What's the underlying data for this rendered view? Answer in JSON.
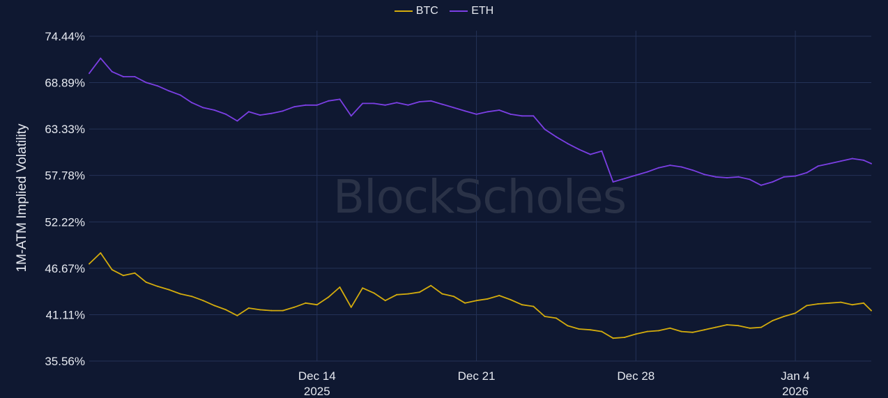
{
  "chart_data": {
    "type": "line",
    "title": "",
    "xlabel": "",
    "ylabel": "1M-ATM Implied Volatility",
    "watermark": "BlockScholes",
    "legend_position": "top-center",
    "grid": true,
    "ylim": [
      35.56,
      74.44
    ],
    "yticks": [
      "35.56%",
      "41.11%",
      "46.67%",
      "52.22%",
      "57.78%",
      "63.33%",
      "68.89%",
      "74.44%"
    ],
    "ytick_values": [
      35.56,
      41.11,
      46.67,
      52.22,
      57.78,
      63.33,
      68.89,
      74.44
    ],
    "xlim": [
      "2025-12-04",
      "2026-01-07T08:00"
    ],
    "xticks": [
      {
        "date": "2025-12-14",
        "label": "Dec 14",
        "sublabel": "2025"
      },
      {
        "date": "2025-12-21",
        "label": "Dec 21",
        "sublabel": ""
      },
      {
        "date": "2025-12-28",
        "label": "Dec 28",
        "sublabel": ""
      },
      {
        "date": "2026-01-04",
        "label": "Jan 4",
        "sublabel": "2026"
      }
    ],
    "series": [
      {
        "name": "BTC",
        "color": "#d4ac0d",
        "x": [
          "2025-12-04",
          "2025-12-04T12:00",
          "2025-12-05",
          "2025-12-05T12:00",
          "2025-12-06",
          "2025-12-06T12:00",
          "2025-12-07",
          "2025-12-07T12:00",
          "2025-12-08",
          "2025-12-08T12:00",
          "2025-12-09",
          "2025-12-09T12:00",
          "2025-12-10",
          "2025-12-10T12:00",
          "2025-12-11",
          "2025-12-11T12:00",
          "2025-12-12",
          "2025-12-12T12:00",
          "2025-12-13",
          "2025-12-13T12:00",
          "2025-12-14",
          "2025-12-14T12:00",
          "2025-12-15",
          "2025-12-15T12:00",
          "2025-12-16",
          "2025-12-16T12:00",
          "2025-12-17",
          "2025-12-17T12:00",
          "2025-12-18",
          "2025-12-18T12:00",
          "2025-12-19",
          "2025-12-19T12:00",
          "2025-12-20",
          "2025-12-20T12:00",
          "2025-12-21",
          "2025-12-21T12:00",
          "2025-12-22",
          "2025-12-22T12:00",
          "2025-12-23",
          "2025-12-23T12:00",
          "2025-12-24",
          "2025-12-24T12:00",
          "2025-12-25",
          "2025-12-25T12:00",
          "2025-12-26",
          "2025-12-26T12:00",
          "2025-12-27",
          "2025-12-27T12:00",
          "2025-12-28",
          "2025-12-28T12:00",
          "2025-12-29",
          "2025-12-29T12:00",
          "2025-12-30",
          "2025-12-30T12:00",
          "2025-12-31",
          "2025-12-31T12:00",
          "2026-01-01",
          "2026-01-01T12:00",
          "2026-01-02",
          "2026-01-02T12:00",
          "2026-01-03",
          "2026-01-03T12:00",
          "2026-01-04",
          "2026-01-04T12:00",
          "2026-01-05",
          "2026-01-05T12:00",
          "2026-01-06",
          "2026-01-06T12:00",
          "2026-01-07",
          "2026-01-07T08:00"
        ],
        "values": [
          47.2,
          48.5,
          46.5,
          45.8,
          46.1,
          45.0,
          44.5,
          44.1,
          43.6,
          43.3,
          42.8,
          42.2,
          41.7,
          41.0,
          41.9,
          41.7,
          41.6,
          41.6,
          42.0,
          42.5,
          42.3,
          43.2,
          44.4,
          42.0,
          44.3,
          43.7,
          42.8,
          43.5,
          43.6,
          43.8,
          44.6,
          43.6,
          43.3,
          42.5,
          42.8,
          43.0,
          43.4,
          42.9,
          42.3,
          42.1,
          40.9,
          40.7,
          39.8,
          39.4,
          39.3,
          39.1,
          38.3,
          38.4,
          38.8,
          39.1,
          39.2,
          39.5,
          39.1,
          39.0,
          39.3,
          39.6,
          39.9,
          39.8,
          39.5,
          39.6,
          40.4,
          40.9,
          41.3,
          42.2,
          42.4,
          42.5,
          42.6,
          42.3,
          42.5,
          41.6
        ]
      },
      {
        "name": "ETH",
        "color": "#7b3fe4",
        "x": [
          "2025-12-04",
          "2025-12-04T12:00",
          "2025-12-05",
          "2025-12-05T12:00",
          "2025-12-06",
          "2025-12-06T12:00",
          "2025-12-07",
          "2025-12-07T12:00",
          "2025-12-08",
          "2025-12-08T12:00",
          "2025-12-09",
          "2025-12-09T12:00",
          "2025-12-10",
          "2025-12-10T12:00",
          "2025-12-11",
          "2025-12-11T12:00",
          "2025-12-12",
          "2025-12-12T12:00",
          "2025-12-13",
          "2025-12-13T12:00",
          "2025-12-14",
          "2025-12-14T12:00",
          "2025-12-15",
          "2025-12-15T12:00",
          "2025-12-16",
          "2025-12-16T12:00",
          "2025-12-17",
          "2025-12-17T12:00",
          "2025-12-18",
          "2025-12-18T12:00",
          "2025-12-19",
          "2025-12-19T12:00",
          "2025-12-20",
          "2025-12-20T12:00",
          "2025-12-21",
          "2025-12-21T12:00",
          "2025-12-22",
          "2025-12-22T12:00",
          "2025-12-23",
          "2025-12-23T12:00",
          "2025-12-24",
          "2025-12-24T12:00",
          "2025-12-25",
          "2025-12-25T12:00",
          "2025-12-26",
          "2025-12-26T12:00",
          "2025-12-27",
          "2025-12-27T12:00",
          "2025-12-28",
          "2025-12-28T12:00",
          "2025-12-29",
          "2025-12-29T12:00",
          "2025-12-30",
          "2025-12-30T12:00",
          "2025-12-31",
          "2025-12-31T12:00",
          "2026-01-01",
          "2026-01-01T12:00",
          "2026-01-02",
          "2026-01-02T12:00",
          "2026-01-03",
          "2026-01-03T12:00",
          "2026-01-04",
          "2026-01-04T12:00",
          "2026-01-05",
          "2026-01-05T12:00",
          "2026-01-06",
          "2026-01-06T12:00",
          "2026-01-07",
          "2026-01-07T08:00"
        ],
        "values": [
          70.0,
          71.8,
          70.2,
          69.6,
          69.6,
          68.9,
          68.5,
          67.9,
          67.4,
          66.5,
          65.9,
          65.6,
          65.1,
          64.3,
          65.4,
          65.0,
          65.2,
          65.5,
          66.0,
          66.2,
          66.2,
          66.7,
          66.9,
          64.9,
          66.4,
          66.4,
          66.2,
          66.5,
          66.2,
          66.6,
          66.7,
          66.3,
          65.9,
          65.5,
          65.1,
          65.4,
          65.6,
          65.1,
          64.9,
          64.9,
          63.3,
          62.4,
          61.6,
          60.9,
          60.3,
          60.7,
          57.0,
          57.4,
          57.8,
          58.2,
          58.7,
          59.0,
          58.8,
          58.4,
          57.9,
          57.6,
          57.5,
          57.6,
          57.3,
          56.6,
          57.0,
          57.6,
          57.7,
          58.1,
          58.9,
          59.2,
          59.5,
          59.8,
          59.6,
          59.2
        ]
      }
    ]
  }
}
